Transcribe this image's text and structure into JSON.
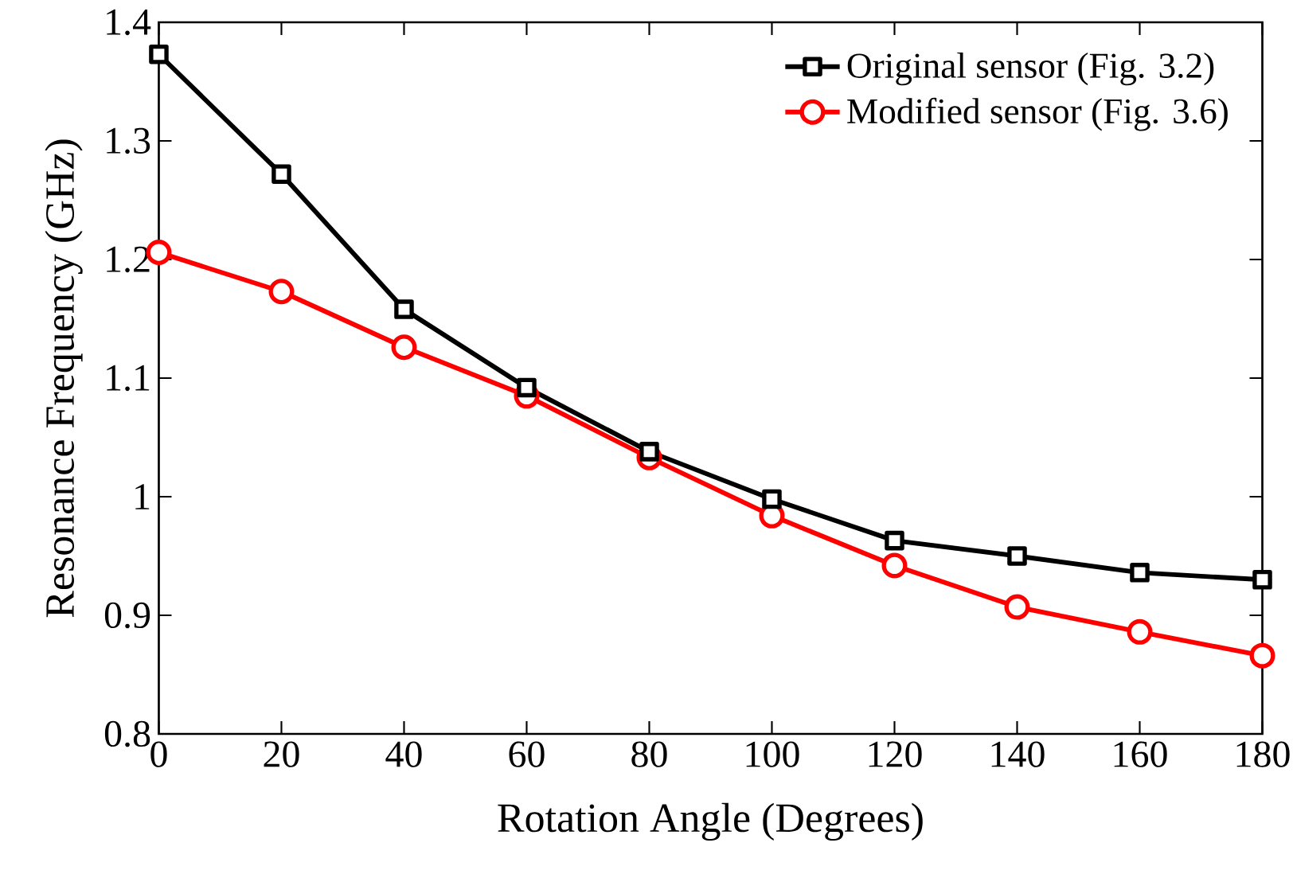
{
  "chart_data": {
    "type": "line",
    "xlabel": "Rotation Angle (Degrees)",
    "ylabel": "Resonance Frequency (GHz)",
    "x": [
      0,
      20,
      40,
      60,
      80,
      100,
      120,
      140,
      160,
      180
    ],
    "series": [
      {
        "name": "Original sensor (Fig. 3.2)",
        "color": "#000000",
        "marker": "square",
        "values": [
          1.373,
          1.272,
          1.158,
          1.092,
          1.038,
          0.998,
          0.963,
          0.95,
          0.936,
          0.93
        ]
      },
      {
        "name": "Modified sensor (Fig. 3.6)",
        "color": "#ff0000",
        "marker": "circle",
        "values": [
          1.206,
          1.173,
          1.126,
          1.085,
          1.033,
          0.984,
          0.942,
          0.907,
          0.886,
          0.866
        ]
      }
    ],
    "xlim": [
      0,
      180
    ],
    "xticks": [
      0,
      20,
      40,
      60,
      80,
      100,
      120,
      140,
      160,
      180
    ],
    "ylim": [
      0.8,
      1.4
    ],
    "yticks": [
      0.8,
      0.9,
      1,
      1.1,
      1.2,
      1.3,
      1.4
    ],
    "grid": false,
    "legend": "top right",
    "line_style": "solid"
  }
}
